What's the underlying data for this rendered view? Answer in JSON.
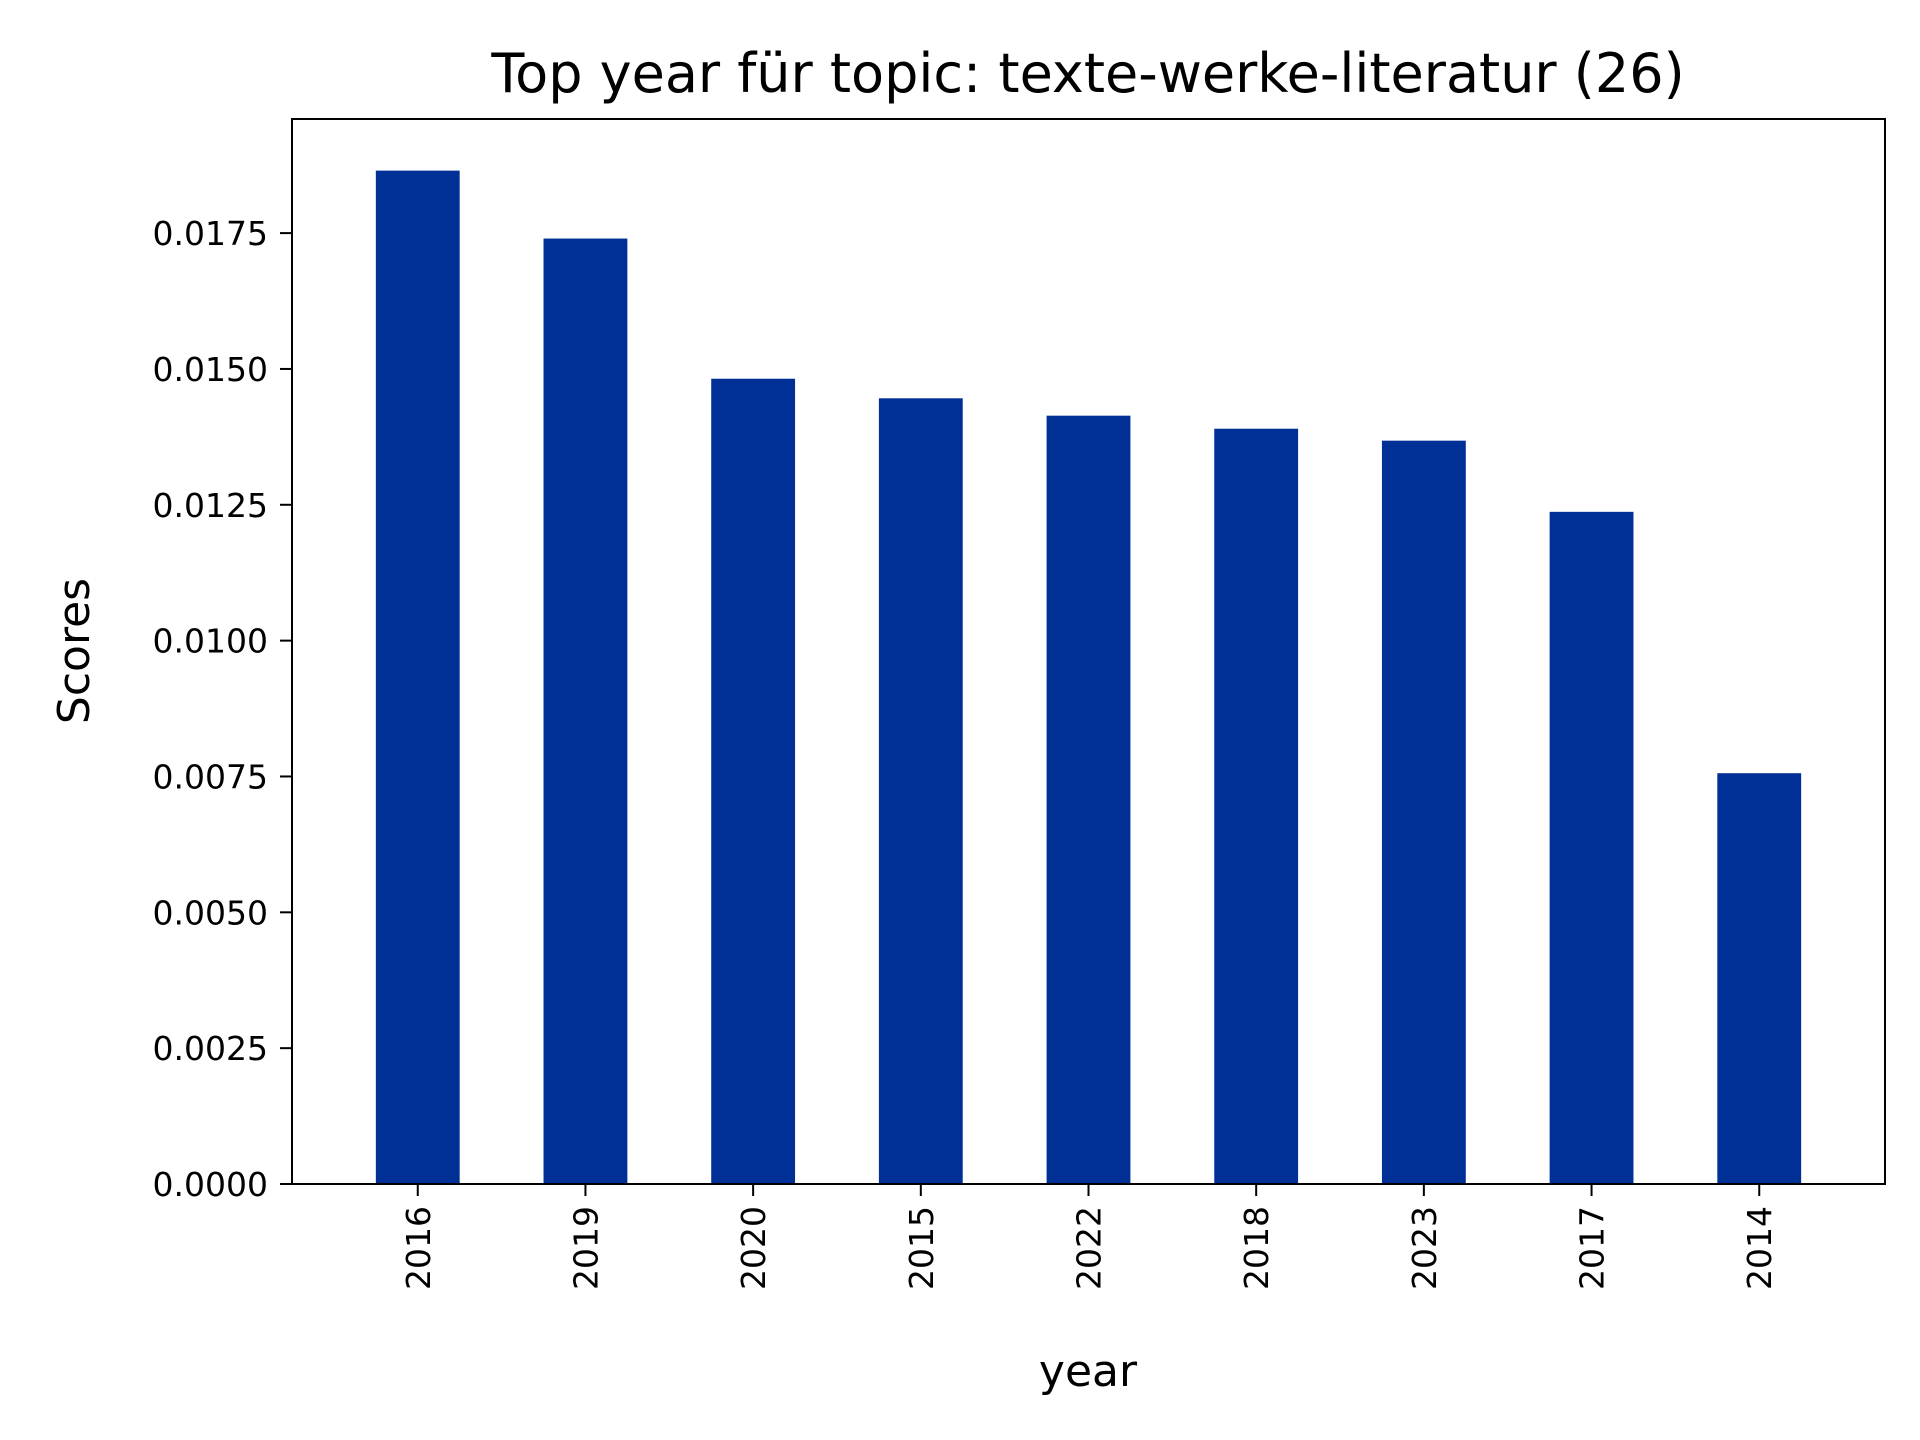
{
  "chart_data": {
    "type": "bar",
    "title": "Top year für topic: texte-werke-literatur (26)",
    "xlabel": "year",
    "ylabel": "Scores",
    "categories": [
      "2016",
      "2019",
      "2020",
      "2015",
      "2022",
      "2018",
      "2023",
      "2017",
      "2014"
    ],
    "values": [
      0.01865,
      0.0174,
      0.01482,
      0.01446,
      0.01414,
      0.0139,
      0.01368,
      0.01237,
      0.00756
    ],
    "ylim": [
      0,
      0.0196
    ],
    "yticks": [
      0.0,
      0.0025,
      0.005,
      0.0075,
      0.01,
      0.0125,
      0.015,
      0.0175
    ],
    "ytick_labels": [
      "0.0000",
      "0.0025",
      "0.0050",
      "0.0075",
      "0.0100",
      "0.0125",
      "0.0150",
      "0.0175"
    ],
    "bar_color": "#003096",
    "grid": false,
    "legend": "none"
  }
}
